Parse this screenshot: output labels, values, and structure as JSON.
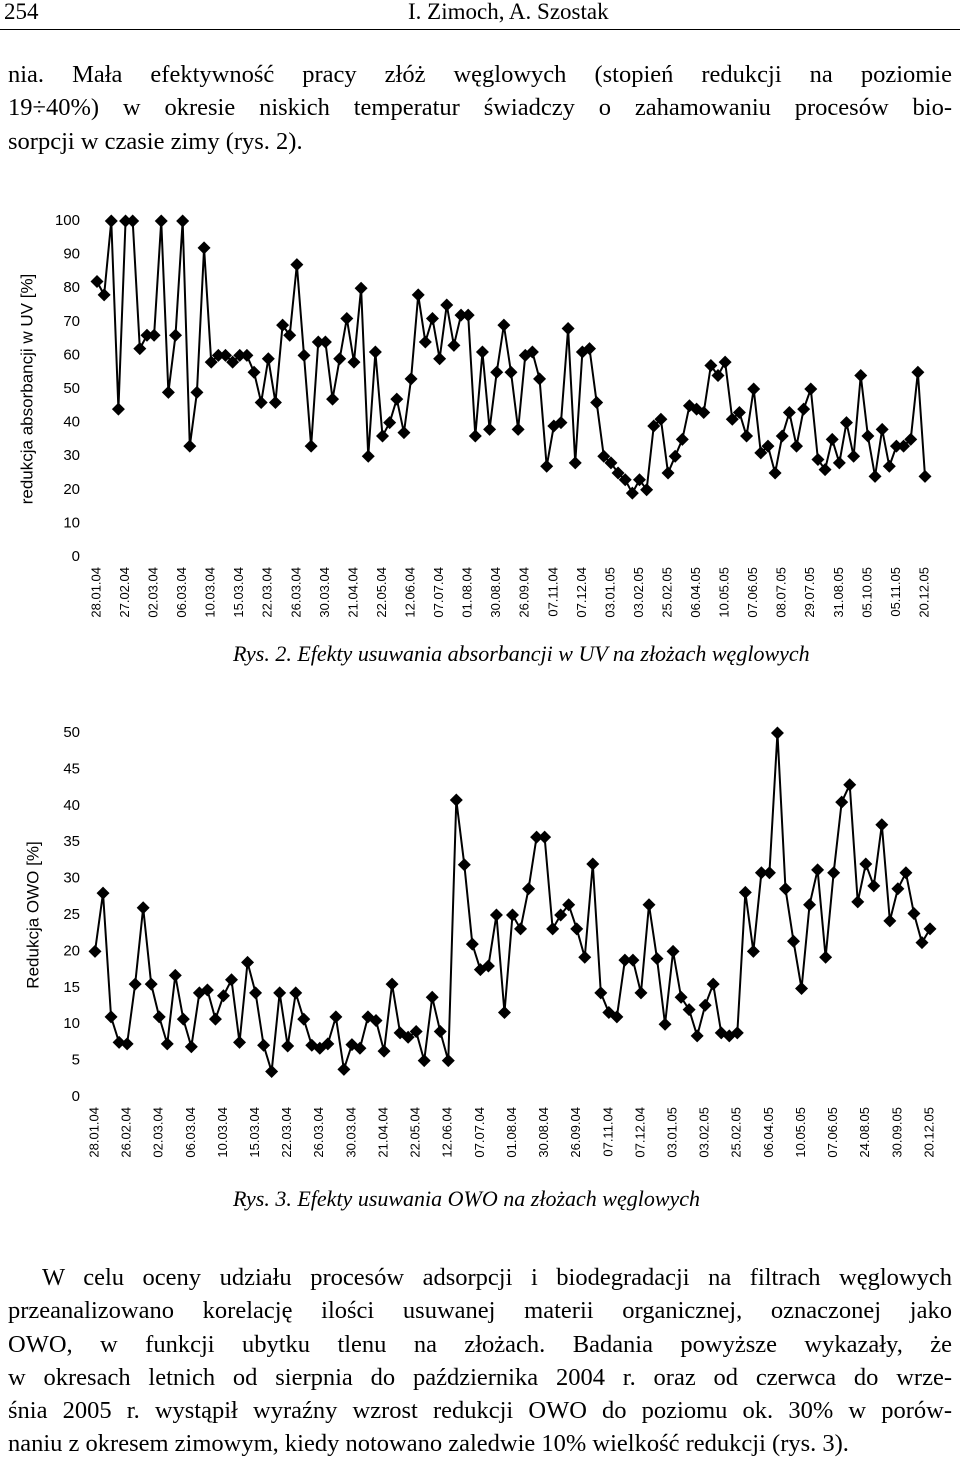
{
  "header": {
    "page": "254",
    "authors": "I. Zimoch, A. Szostak"
  },
  "paragraph1": [
    "nia. Mała efektywność pracy złóż węglowych (stopień redukcji na poziomie",
    "19÷40%) w okresie niskich temperatur świadczy o zahamowaniu procesów bio-",
    "sorpcji w czasie zimy (rys. 2)."
  ],
  "paragraph2": [
    "W celu oceny udziału procesów adsorpcji i biodegradacji na filtrach węglowych",
    "przeanalizowano korelację ilości usuwanej materii organicznej, oznaczonej jako",
    "OWO, w funkcji ubytku tlenu na złożach. Badania powyższe wykazały, że",
    "w okresach letnich od sierpnia do października 2004 r. oraz od czerwca do wrze-",
    "śnia 2005 r. wystąpił wyraźny wzrost redukcji OWO do poziomu ok. 30% w porów-",
    "naniu z okresem zimowym, kiedy notowano zaledwie 10% wielkość redukcji (rys. 3)."
  ],
  "chart_data": [
    {
      "type": "line",
      "caption": "Rys. 2. Efekty usuwania absorbancji w UV na złożach węglowych",
      "ylabel": "redukcja absorbancji w UV [%]",
      "color": "#000000",
      "ylim": [
        0,
        100
      ],
      "yticks": [
        0,
        10,
        20,
        30,
        40,
        50,
        60,
        70,
        80,
        90,
        100
      ],
      "categories": [
        "28.01.04",
        null,
        null,
        null,
        "27.02.04",
        null,
        null,
        null,
        "02.03.04",
        null,
        null,
        null,
        "06.03.04",
        null,
        null,
        null,
        "10.03.04",
        null,
        null,
        null,
        "15.03.04",
        null,
        null,
        null,
        "22.03.04",
        null,
        null,
        null,
        "26.03.04",
        null,
        null,
        null,
        "30.03.04",
        null,
        null,
        null,
        "21.04.04",
        null,
        null,
        null,
        "22.05.04",
        null,
        null,
        null,
        "12.06.04",
        null,
        null,
        null,
        "07.07.04",
        null,
        null,
        null,
        "01.08.04",
        null,
        null,
        null,
        "30.08.04",
        null,
        null,
        null,
        "26.09.04",
        null,
        null,
        null,
        "07.11.04",
        null,
        null,
        null,
        "07.12.04",
        null,
        null,
        null,
        "03.01.05",
        null,
        null,
        null,
        "03.02.05",
        null,
        null,
        null,
        "25.02.05",
        null,
        null,
        null,
        "06.04.05",
        null,
        null,
        null,
        "10.05.05",
        null,
        null,
        null,
        "07.06.05",
        null,
        null,
        null,
        "08.07.05",
        null,
        null,
        null,
        "29.07.05",
        null,
        null,
        null,
        "31.08.05",
        null,
        null,
        null,
        "05.10.05",
        null,
        null,
        null,
        "05.11.05",
        null,
        null,
        null,
        "20.12.05"
      ],
      "values": [
        82,
        78,
        100,
        44,
        100,
        100,
        62,
        66,
        66,
        100,
        49,
        66,
        100,
        33,
        49,
        92,
        58,
        60,
        60,
        58,
        60,
        60,
        55,
        46,
        59,
        46,
        69,
        66,
        87,
        60,
        33,
        64,
        64,
        47,
        59,
        71,
        58,
        80,
        30,
        61,
        36,
        40,
        47,
        37,
        53,
        78,
        64,
        71,
        59,
        75,
        63,
        72,
        72,
        36,
        61,
        38,
        55,
        69,
        55,
        38,
        60,
        61,
        53,
        27,
        39,
        40,
        68,
        28,
        61,
        62,
        46,
        30,
        28,
        25,
        23,
        19,
        23,
        20,
        39,
        41,
        25,
        30,
        35,
        45,
        44,
        43,
        57,
        54,
        58,
        41,
        43,
        36,
        50,
        31,
        33,
        25,
        36,
        43,
        33,
        44,
        50,
        29,
        26,
        35,
        28,
        40,
        30,
        54,
        36,
        24,
        38,
        27,
        33,
        33,
        35,
        55,
        24
      ]
    },
    {
      "type": "line",
      "caption": "Rys. 3. Efekty usuwania OWO na złożach węglowych",
      "ylabel": "Redukcja OWO [%]",
      "color": "#000000",
      "ylim": [
        0,
        50
      ],
      "yticks": [
        0,
        5,
        10,
        15,
        20,
        25,
        30,
        35,
        40,
        45,
        50
      ],
      "categories": [
        "28.01.04",
        null,
        null,
        null,
        "26.02.04",
        null,
        null,
        null,
        "02.03.04",
        null,
        null,
        null,
        "06.03.04",
        null,
        null,
        null,
        "10.03.04",
        null,
        null,
        null,
        "15.03.04",
        null,
        null,
        null,
        "22.03.04",
        null,
        null,
        null,
        "26.03.04",
        null,
        null,
        null,
        "30.03.04",
        null,
        null,
        null,
        "21.04.04",
        null,
        null,
        null,
        "22.05.04",
        null,
        null,
        null,
        "12.06.04",
        null,
        null,
        null,
        "07.07.04",
        null,
        null,
        null,
        "01.08.04",
        null,
        null,
        null,
        "30.08.04",
        null,
        null,
        null,
        "26.09.04",
        null,
        null,
        null,
        "07.11.04",
        null,
        null,
        null,
        "07.12.04",
        null,
        null,
        null,
        "03.01.05",
        null,
        null,
        null,
        "03.02.05",
        null,
        null,
        null,
        "25.02.05",
        null,
        null,
        null,
        "06.04.05",
        null,
        null,
        null,
        "10.05.05",
        null,
        null,
        null,
        "07.06.05",
        null,
        null,
        null,
        "24.08.05",
        null,
        null,
        null,
        "30.09.05",
        null,
        null,
        null,
        "20.12.05"
      ],
      "values": [
        20,
        28,
        11,
        7.5,
        7.3,
        15.5,
        26,
        15.5,
        11,
        7.3,
        16.7,
        10.7,
        6.9,
        14.3,
        14.7,
        10.7,
        13.9,
        16.1,
        7.5,
        18.5,
        14.3,
        7.1,
        3.5,
        14.3,
        7,
        14.3,
        10.7,
        7.1,
        6.7,
        7.3,
        11,
        3.8,
        7.2,
        6.7,
        11,
        10.5,
        6.3,
        15.5,
        8.8,
        8.2,
        9,
        5,
        13.7,
        9,
        5,
        40.8,
        31.9,
        21,
        17.5,
        18,
        25,
        11.6,
        25,
        23.1,
        28.6,
        35.7,
        35.7,
        23.1,
        25,
        26.4,
        23.1,
        19.2,
        32,
        14.3,
        11.6,
        11,
        18.8,
        18.8,
        14.3,
        26.4,
        19,
        10,
        20,
        13.7,
        12,
        8.4,
        12.6,
        15.5,
        8.8,
        8.4,
        8.8,
        28.1,
        20,
        30.8,
        30.8,
        50,
        28.6,
        21.4,
        14.9,
        26.4,
        31.2,
        19.2,
        30.8,
        40.5,
        42.9,
        26.8,
        32,
        29,
        37.4,
        24.2,
        28.6,
        30.8,
        25.2,
        21.2,
        23.1
      ]
    }
  ]
}
